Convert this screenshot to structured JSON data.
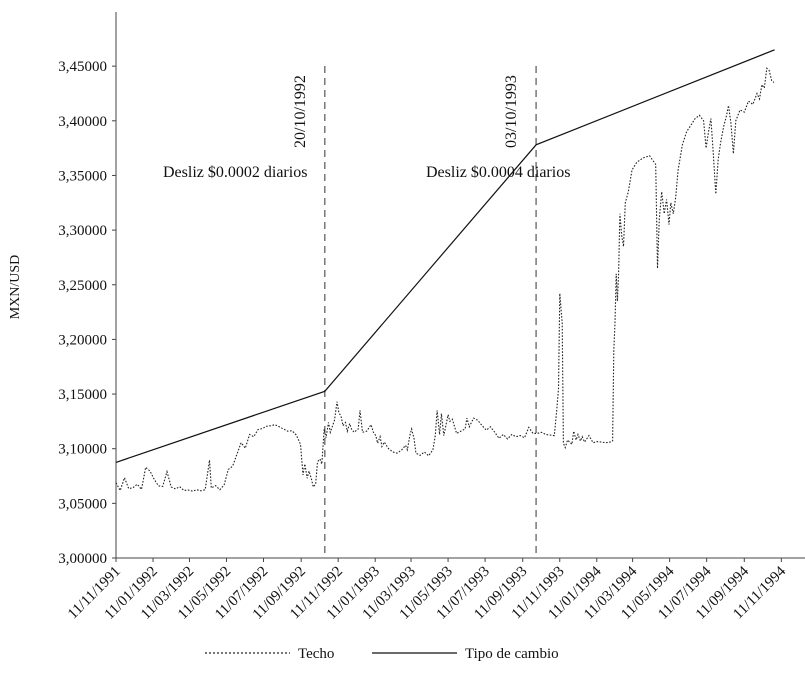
{
  "chart_data": {
    "type": "line",
    "ylabel": "MXN/USD",
    "xlabel": "",
    "ylim": [
      3.0,
      3.47
    ],
    "y_ticks": [
      "3,00000",
      "3,05000",
      "3,10000",
      "3,15000",
      "3,20000",
      "3,25000",
      "3,30000",
      "3,35000",
      "3,40000",
      "3,45000"
    ],
    "x_range": [
      "1991-11-11",
      "1994-12-20"
    ],
    "x_ticks": [
      {
        "date": "1991-11-11",
        "label": "11/11/1991"
      },
      {
        "date": "1992-01-11",
        "label": "11/01/1992"
      },
      {
        "date": "1992-03-11",
        "label": "11/03/1992"
      },
      {
        "date": "1992-05-11",
        "label": "11/05/1992"
      },
      {
        "date": "1992-07-11",
        "label": "11/07/1992"
      },
      {
        "date": "1992-09-11",
        "label": "11/09/1992"
      },
      {
        "date": "1992-11-11",
        "label": "11/11/1992"
      },
      {
        "date": "1993-01-11",
        "label": "11/01/1993"
      },
      {
        "date": "1993-03-11",
        "label": "11/03/1993"
      },
      {
        "date": "1993-05-11",
        "label": "11/05/1993"
      },
      {
        "date": "1993-07-11",
        "label": "11/07/1993"
      },
      {
        "date": "1993-09-11",
        "label": "11/09/1993"
      },
      {
        "date": "1993-11-11",
        "label": "11/11/1993"
      },
      {
        "date": "1994-01-11",
        "label": "11/01/1994"
      },
      {
        "date": "1994-03-11",
        "label": "11/03/1994"
      },
      {
        "date": "1994-05-11",
        "label": "11/05/1994"
      },
      {
        "date": "1994-07-11",
        "label": "11/07/1994"
      },
      {
        "date": "1994-09-11",
        "label": "11/09/1994"
      },
      {
        "date": "1994-11-11",
        "label": "11/11/1994"
      }
    ],
    "grid": false,
    "legend_position": "bottom",
    "series": [
      {
        "name": "Techo",
        "style": "dotted",
        "color": "#222222",
        "points": [
          [
            "1991-11-11",
            3.0688
          ],
          [
            "1991-11-18",
            3.0618
          ],
          [
            "1991-11-25",
            3.0735
          ],
          [
            "1991-12-02",
            3.0635
          ],
          [
            "1991-12-09",
            3.0642
          ],
          [
            "1991-12-16",
            3.0675
          ],
          [
            "1991-12-23",
            3.0628
          ],
          [
            "1991-12-30",
            3.083
          ],
          [
            "1992-01-06",
            3.0795
          ],
          [
            "1992-01-13",
            3.072
          ],
          [
            "1992-01-20",
            3.066
          ],
          [
            "1992-01-27",
            3.0655
          ],
          [
            "1992-02-03",
            3.079
          ],
          [
            "1992-02-10",
            3.065
          ],
          [
            "1992-02-17",
            3.0632
          ],
          [
            "1992-02-24",
            3.0652
          ],
          [
            "1992-03-02",
            3.0618
          ],
          [
            "1992-03-09",
            3.0622
          ],
          [
            "1992-03-16",
            3.0612
          ],
          [
            "1992-03-23",
            3.0625
          ],
          [
            "1992-03-30",
            3.0615
          ],
          [
            "1992-04-06",
            3.0625
          ],
          [
            "1992-04-13",
            3.0895
          ],
          [
            "1992-04-16",
            3.064
          ],
          [
            "1992-04-23",
            3.0662
          ],
          [
            "1992-04-30",
            3.0625
          ],
          [
            "1992-05-07",
            3.0668
          ],
          [
            "1992-05-14",
            3.081
          ],
          [
            "1992-05-21",
            3.084
          ],
          [
            "1992-05-28",
            3.0945
          ],
          [
            "1992-06-04",
            3.1055
          ],
          [
            "1992-06-11",
            3.1005
          ],
          [
            "1992-06-18",
            3.113
          ],
          [
            "1992-06-25",
            3.111
          ],
          [
            "1992-07-02",
            3.1175
          ],
          [
            "1992-07-09",
            3.1185
          ],
          [
            "1992-07-16",
            3.1205
          ],
          [
            "1992-07-23",
            3.121
          ],
          [
            "1992-07-30",
            3.122
          ],
          [
            "1992-08-06",
            3.12
          ],
          [
            "1992-08-13",
            3.118
          ],
          [
            "1992-08-20",
            3.116
          ],
          [
            "1992-08-27",
            3.1165
          ],
          [
            "1992-09-03",
            3.1125
          ],
          [
            "1992-09-10",
            3.104
          ],
          [
            "1992-09-14",
            3.076
          ],
          [
            "1992-09-17",
            3.086
          ],
          [
            "1992-09-21",
            3.073
          ],
          [
            "1992-09-24",
            3.0795
          ],
          [
            "1992-09-28",
            3.072
          ],
          [
            "1992-10-01",
            3.065
          ],
          [
            "1992-10-05",
            3.068
          ],
          [
            "1992-10-08",
            3.088
          ],
          [
            "1992-10-12",
            3.0905
          ],
          [
            "1992-10-15",
            3.086
          ],
          [
            "1992-10-19",
            3.118
          ],
          [
            "1992-10-22",
            3.11
          ],
          [
            "1992-10-26",
            3.124
          ],
          [
            "1992-10-29",
            3.115
          ],
          [
            "1992-11-05",
            3.126
          ],
          [
            "1992-11-09",
            3.143
          ],
          [
            "1992-11-12",
            3.1335
          ],
          [
            "1992-11-16",
            3.129
          ],
          [
            "1992-11-19",
            3.121
          ],
          [
            "1992-11-23",
            3.124
          ],
          [
            "1992-11-26",
            3.116
          ],
          [
            "1992-11-30",
            3.123
          ],
          [
            "1992-12-03",
            3.118
          ],
          [
            "1992-12-07",
            3.115
          ],
          [
            "1992-12-14",
            3.118
          ],
          [
            "1992-12-17",
            3.135
          ],
          [
            "1992-12-21",
            3.115
          ],
          [
            "1992-12-28",
            3.116
          ],
          [
            "1993-01-04",
            3.122
          ],
          [
            "1993-01-08",
            3.115
          ],
          [
            "1993-01-12",
            3.112
          ],
          [
            "1993-01-15",
            3.105
          ],
          [
            "1993-01-19",
            3.111
          ],
          [
            "1993-01-22",
            3.102
          ],
          [
            "1993-01-26",
            3.106
          ],
          [
            "1993-02-02",
            3.1
          ],
          [
            "1993-02-09",
            3.097
          ],
          [
            "1993-02-16",
            3.096
          ],
          [
            "1993-02-23",
            3.0985
          ],
          [
            "1993-03-02",
            3.103
          ],
          [
            "1993-03-05",
            3.099
          ],
          [
            "1993-03-09",
            3.112
          ],
          [
            "1993-03-12",
            3.118
          ],
          [
            "1993-03-16",
            3.109
          ],
          [
            "1993-03-19",
            3.096
          ],
          [
            "1993-03-26",
            3.094
          ],
          [
            "1993-04-02",
            3.097
          ],
          [
            "1993-04-09",
            3.0935
          ],
          [
            "1993-04-16",
            3.099
          ],
          [
            "1993-04-20",
            3.112
          ],
          [
            "1993-04-23",
            3.135
          ],
          [
            "1993-04-27",
            3.113
          ],
          [
            "1993-04-30",
            3.132
          ],
          [
            "1993-05-04",
            3.112
          ],
          [
            "1993-05-07",
            3.12
          ],
          [
            "1993-05-11",
            3.131
          ],
          [
            "1993-05-14",
            3.125
          ],
          [
            "1993-05-18",
            3.127
          ],
          [
            "1993-05-25",
            3.114
          ],
          [
            "1993-06-01",
            3.116
          ],
          [
            "1993-06-08",
            3.118
          ],
          [
            "1993-06-11",
            3.128
          ],
          [
            "1993-06-15",
            3.12
          ],
          [
            "1993-06-22",
            3.128
          ],
          [
            "1993-06-29",
            3.126
          ],
          [
            "1993-07-06",
            3.121
          ],
          [
            "1993-07-13",
            3.117
          ],
          [
            "1993-07-20",
            3.12
          ],
          [
            "1993-07-27",
            3.115
          ],
          [
            "1993-08-03",
            3.1095
          ],
          [
            "1993-08-10",
            3.113
          ],
          [
            "1993-08-17",
            3.109
          ],
          [
            "1993-08-24",
            3.113
          ],
          [
            "1993-08-31",
            3.111
          ],
          [
            "1993-09-07",
            3.112
          ],
          [
            "1993-09-14",
            3.11
          ],
          [
            "1993-09-21",
            3.1195
          ],
          [
            "1993-09-28",
            3.114
          ],
          [
            "1993-10-05",
            3.114
          ],
          [
            "1993-10-12",
            3.115
          ],
          [
            "1993-10-19",
            3.113
          ],
          [
            "1993-10-26",
            3.1125
          ],
          [
            "1993-11-02",
            3.112
          ],
          [
            "1993-11-06",
            3.135
          ],
          [
            "1993-11-09",
            3.155
          ],
          [
            "1993-11-11",
            3.242
          ],
          [
            "1993-11-13",
            3.228
          ],
          [
            "1993-11-15",
            3.215
          ],
          [
            "1993-11-17",
            3.105
          ],
          [
            "1993-11-20",
            3.101
          ],
          [
            "1993-11-24",
            3.108
          ],
          [
            "1993-12-01",
            3.104
          ],
          [
            "1993-12-04",
            3.116
          ],
          [
            "1993-12-08",
            3.108
          ],
          [
            "1993-12-11",
            3.113
          ],
          [
            "1993-12-15",
            3.107
          ],
          [
            "1993-12-18",
            3.111
          ],
          [
            "1993-12-22",
            3.106
          ],
          [
            "1993-12-29",
            3.112
          ],
          [
            "1994-01-05",
            3.1055
          ],
          [
            "1994-01-12",
            3.1065
          ],
          [
            "1994-01-19",
            3.106
          ],
          [
            "1994-01-26",
            3.1055
          ],
          [
            "1994-02-02",
            3.106
          ],
          [
            "1994-02-06",
            3.107
          ],
          [
            "1994-02-08",
            3.19
          ],
          [
            "1994-02-10",
            3.215
          ],
          [
            "1994-02-12",
            3.26
          ],
          [
            "1994-02-14",
            3.235
          ],
          [
            "1994-02-16",
            3.26
          ],
          [
            "1994-02-18",
            3.315
          ],
          [
            "1994-02-21",
            3.295
          ],
          [
            "1994-02-24",
            3.285
          ],
          [
            "1994-02-27",
            3.325
          ],
          [
            "1994-03-04",
            3.335
          ],
          [
            "1994-03-10",
            3.355
          ],
          [
            "1994-03-18",
            3.362
          ],
          [
            "1994-03-28",
            3.366
          ],
          [
            "1994-04-08",
            3.368
          ],
          [
            "1994-04-18",
            3.36
          ],
          [
            "1994-04-21",
            3.265
          ],
          [
            "1994-04-24",
            3.31
          ],
          [
            "1994-04-28",
            3.335
          ],
          [
            "1994-05-02",
            3.315
          ],
          [
            "1994-05-06",
            3.328
          ],
          [
            "1994-05-10",
            3.305
          ],
          [
            "1994-05-13",
            3.325
          ],
          [
            "1994-05-17",
            3.315
          ],
          [
            "1994-05-21",
            3.33
          ],
          [
            "1994-05-25",
            3.355
          ],
          [
            "1994-06-01",
            3.378
          ],
          [
            "1994-06-08",
            3.39
          ],
          [
            "1994-06-15",
            3.396
          ],
          [
            "1994-06-22",
            3.402
          ],
          [
            "1994-06-29",
            3.405
          ],
          [
            "1994-07-06",
            3.4
          ],
          [
            "1994-07-10",
            3.375
          ],
          [
            "1994-07-14",
            3.39
          ],
          [
            "1994-07-18",
            3.402
          ],
          [
            "1994-07-22",
            3.37
          ],
          [
            "1994-07-26",
            3.333
          ],
          [
            "1994-07-30",
            3.365
          ],
          [
            "1994-08-03",
            3.38
          ],
          [
            "1994-08-08",
            3.395
          ],
          [
            "1994-08-12",
            3.403
          ],
          [
            "1994-08-16",
            3.414
          ],
          [
            "1994-08-20",
            3.398
          ],
          [
            "1994-08-24",
            3.37
          ],
          [
            "1994-08-28",
            3.4
          ],
          [
            "1994-09-04",
            3.41
          ],
          [
            "1994-09-11",
            3.408
          ],
          [
            "1994-09-18",
            3.418
          ],
          [
            "1994-09-25",
            3.415
          ],
          [
            "1994-10-02",
            3.425
          ],
          [
            "1994-10-06",
            3.42
          ],
          [
            "1994-10-10",
            3.433
          ],
          [
            "1994-10-14",
            3.43
          ],
          [
            "1994-10-18",
            3.448
          ],
          [
            "1994-10-22",
            3.446
          ],
          [
            "1994-10-26",
            3.437
          ],
          [
            "1994-10-30",
            3.435
          ]
        ]
      },
      {
        "name": "Tipo de cambio",
        "style": "solid",
        "color": "#111111",
        "points": [
          [
            "1991-11-11",
            3.0875
          ],
          [
            "1992-10-20",
            3.1525
          ],
          [
            "1993-10-03",
            3.378
          ],
          [
            "1994-10-31",
            3.465
          ]
        ]
      }
    ],
    "reference_lines": [
      {
        "date": "1992-10-20",
        "label": "20/10/1992"
      },
      {
        "date": "1993-10-03",
        "label": "03/10/1993"
      }
    ],
    "annotations": [
      {
        "text": "Desliz $0.0002 diarios"
      },
      {
        "text": "Desliz $0.0004 diarios"
      }
    ]
  }
}
